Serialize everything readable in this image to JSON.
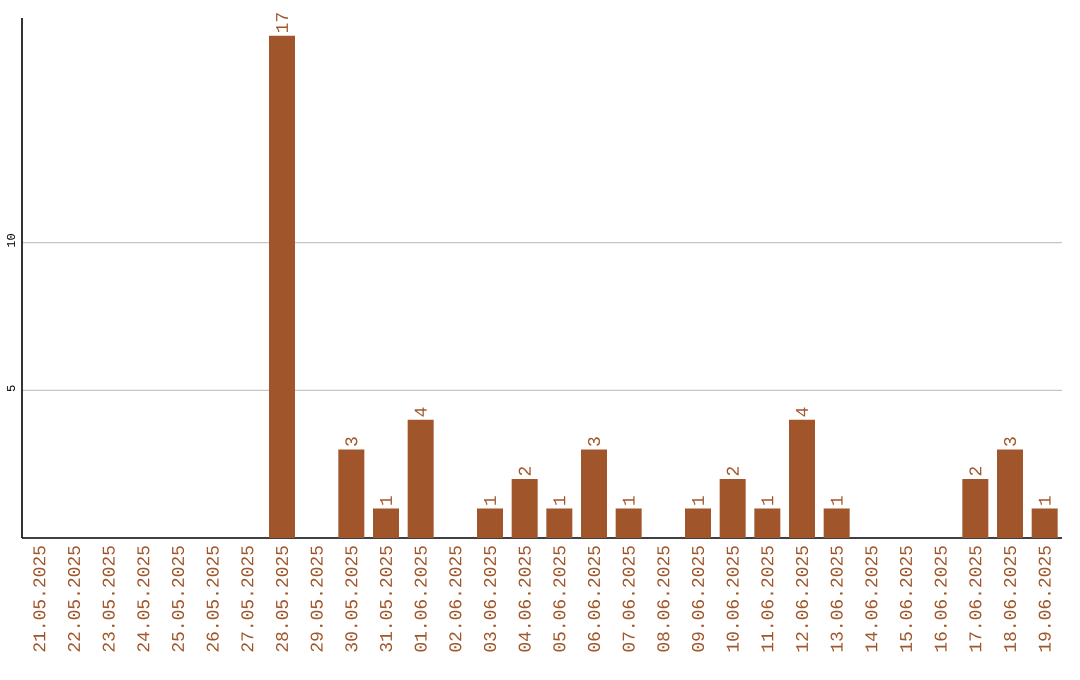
{
  "chart_data": {
    "type": "bar",
    "categories": [
      "21.05.2025",
      "22.05.2025",
      "23.05.2025",
      "24.05.2025",
      "25.05.2025",
      "26.05.2025",
      "27.05.2025",
      "28.05.2025",
      "29.05.2025",
      "30.05.2025",
      "31.05.2025",
      "01.06.2025",
      "02.06.2025",
      "03.06.2025",
      "04.06.2025",
      "05.06.2025",
      "06.06.2025",
      "07.06.2025",
      "08.06.2025",
      "09.06.2025",
      "10.06.2025",
      "11.06.2025",
      "12.06.2025",
      "13.06.2025",
      "14.06.2025",
      "15.06.2025",
      "16.06.2025",
      "17.06.2025",
      "18.06.2025",
      "19.06.2025"
    ],
    "values": [
      0,
      0,
      0,
      0,
      0,
      0,
      0,
      17,
      0,
      3,
      1,
      4,
      0,
      1,
      2,
      1,
      3,
      1,
      0,
      1,
      2,
      1,
      4,
      1,
      0,
      0,
      0,
      2,
      3,
      1
    ],
    "value_labels": [
      null,
      null,
      null,
      null,
      null,
      null,
      null,
      "17",
      null,
      "3",
      "1",
      "4",
      null,
      "1",
      "2",
      "1",
      "3",
      "1",
      null,
      "1",
      "2",
      "1",
      "4",
      "1",
      null,
      null,
      null,
      "2",
      "3",
      "1"
    ],
    "color": "#a0562a",
    "ylim": [
      0,
      17.6
    ],
    "yticks": [
      5,
      10
    ],
    "grid": "y"
  }
}
